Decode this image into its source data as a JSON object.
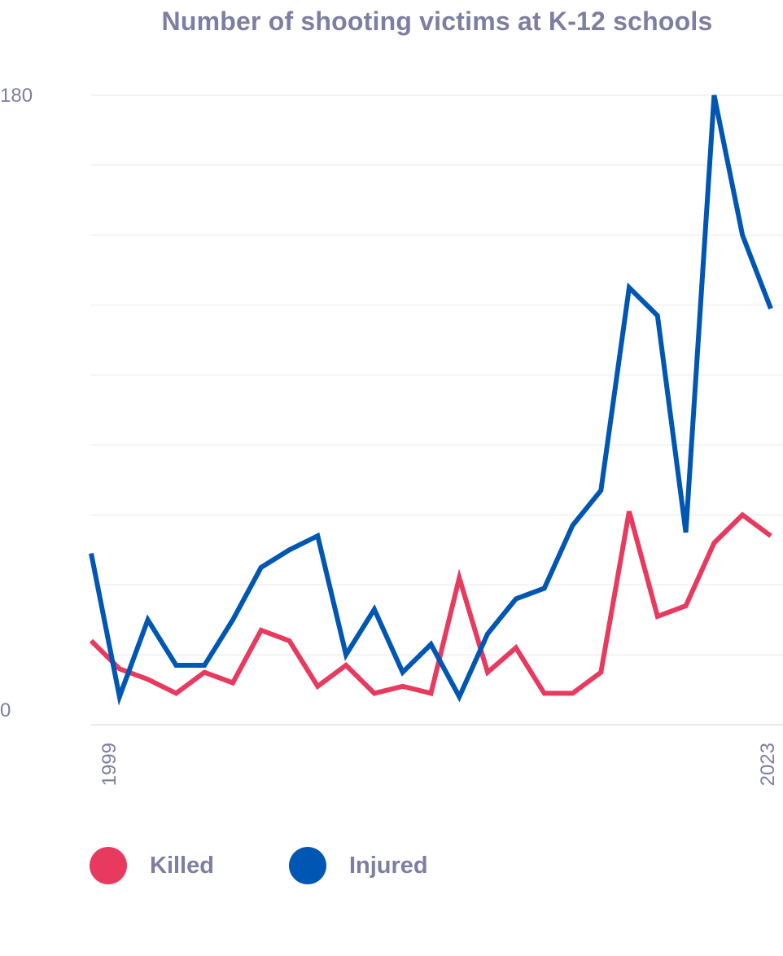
{
  "chart_data": {
    "type": "line",
    "title": "Number of shooting victims at K-12 schools",
    "x": [
      1999,
      2000,
      2001,
      2002,
      2003,
      2004,
      2005,
      2006,
      2007,
      2008,
      2009,
      2010,
      2011,
      2012,
      2013,
      2014,
      2015,
      2016,
      2017,
      2018,
      2019,
      2020,
      2021,
      2022,
      2023
    ],
    "x_tick_labels": [
      "1999",
      "2023"
    ],
    "y_tick_labels": [
      "0",
      "180"
    ],
    "ylim": [
      0,
      180
    ],
    "grid": true,
    "legend_position": "bottom-left",
    "series": [
      {
        "name": "Killed",
        "color": "#e8395f",
        "values": [
          24,
          16,
          13,
          9,
          15,
          12,
          27,
          24,
          11,
          17,
          9,
          11,
          9,
          42,
          15,
          22,
          9,
          9,
          15,
          61,
          31,
          34,
          52,
          60,
          54
        ]
      },
      {
        "name": "Injured",
        "color": "#0057b3",
        "values": [
          49,
          8,
          30,
          17,
          17,
          30,
          45,
          50,
          54,
          20,
          33,
          15,
          23,
          8,
          26,
          36,
          39,
          57,
          67,
          125,
          117,
          55,
          180,
          140,
          119
        ]
      }
    ]
  }
}
